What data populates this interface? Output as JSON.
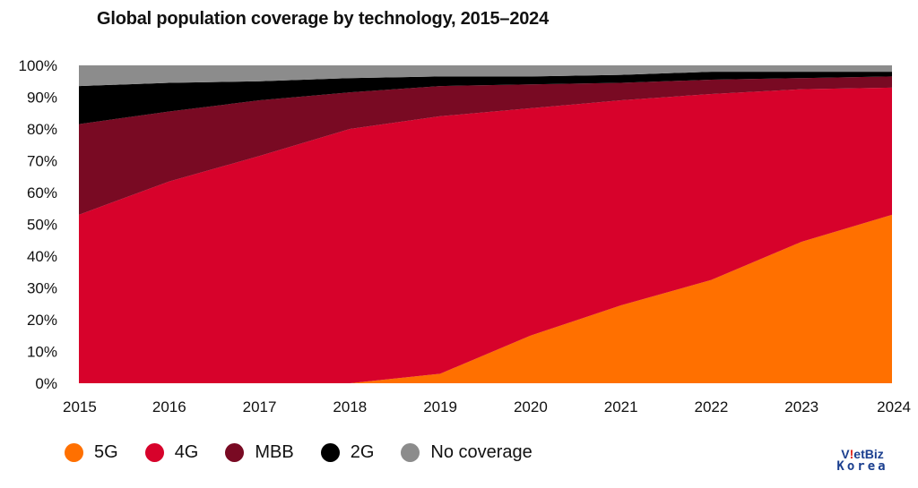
{
  "chart_data": {
    "type": "area",
    "stacked": true,
    "title": "Global population coverage by technology, 2015–2024",
    "x": [
      "2015",
      "2016",
      "2017",
      "2018",
      "2019",
      "2020",
      "2021",
      "2022",
      "2023",
      "2024"
    ],
    "yticks": [
      "0%",
      "10%",
      "20%",
      "30%",
      "40%",
      "50%",
      "60%",
      "70%",
      "80%",
      "90%",
      "100%"
    ],
    "ylim": [
      0,
      100
    ],
    "series": [
      {
        "name": "5G",
        "color": "#ff7000",
        "values": [
          0,
          0,
          0,
          0,
          3,
          15,
          24.5,
          32.5,
          44.5,
          53
        ]
      },
      {
        "name": "4G",
        "color": "#d7022b",
        "values": [
          53,
          63.5,
          71.5,
          80,
          81,
          71.5,
          64.5,
          58.5,
          48,
          40
        ]
      },
      {
        "name": "MBB",
        "color": "#790a23",
        "values": [
          28.5,
          22,
          17.5,
          11.5,
          9.5,
          7.5,
          5.5,
          4.5,
          3.5,
          3.5
        ]
      },
      {
        "name": "2G",
        "color": "#000000",
        "values": [
          12,
          9,
          6,
          4.5,
          3,
          2.5,
          2.5,
          2.5,
          2,
          1.5
        ]
      },
      {
        "name": "No coverage",
        "color": "#8c8c8c",
        "values": [
          6.5,
          5.5,
          5,
          4,
          3.5,
          3.5,
          3,
          2,
          2,
          2
        ]
      }
    ],
    "legend": [
      "5G",
      "4G",
      "MBB",
      "2G",
      "No coverage"
    ],
    "legend_position": "bottom-left"
  },
  "watermark": {
    "line1_a": "V",
    "line1_b": "!",
    "line1_c": "etBiz",
    "line2": "Korea"
  }
}
